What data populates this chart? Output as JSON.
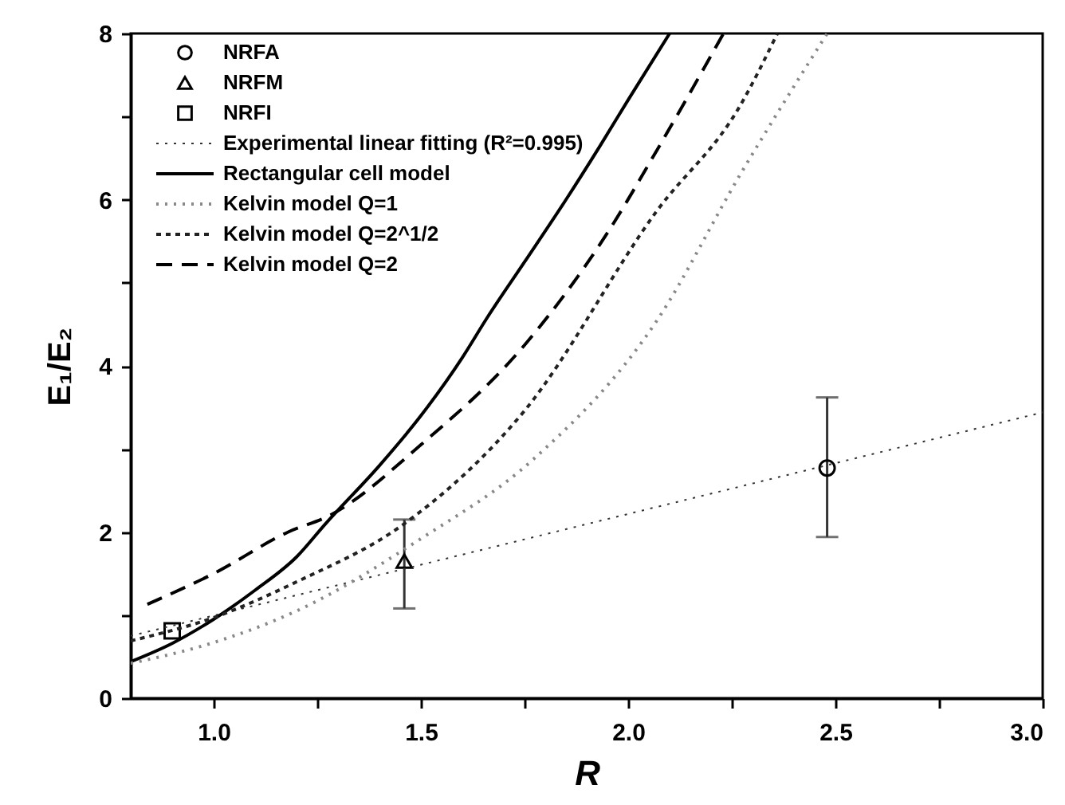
{
  "chart_data": {
    "type": "line",
    "xlabel": "R",
    "ylabel": "E₁/E₂",
    "xlim": [
      0.8,
      3.0
    ],
    "ylim": [
      0,
      8
    ],
    "xticks": [
      {
        "value": 1.0,
        "label": "1.0"
      },
      {
        "value": 1.25,
        "label": null
      },
      {
        "value": 1.5,
        "label": "1.5"
      },
      {
        "value": 1.75,
        "label": null
      },
      {
        "value": 2.0,
        "label": "2.0"
      },
      {
        "value": 2.25,
        "label": null
      },
      {
        "value": 2.5,
        "label": "2.5"
      },
      {
        "value": 2.75,
        "label": null
      },
      {
        "value": 3.0,
        "label": "3.0"
      }
    ],
    "yticks": [
      0,
      {
        "value": 1,
        "label": null
      },
      2,
      {
        "value": 3,
        "label": null
      },
      4,
      {
        "value": 5,
        "label": null
      },
      6,
      {
        "value": 7,
        "label": null
      },
      8
    ],
    "grid": false,
    "legend": "top left",
    "series": [
      {
        "name": "NRFA",
        "type": "scatter",
        "marker": "circle",
        "color": "#000000",
        "x": [
          2.48
        ],
        "values": [
          2.77
        ],
        "errors": [
          [
            1.94,
            3.62
          ]
        ]
      },
      {
        "name": "NRFM",
        "type": "scatter",
        "marker": "triangle",
        "color": "#000000",
        "x": [
          1.46
        ],
        "values": [
          1.65
        ],
        "errors": [
          [
            1.08,
            2.15
          ]
        ]
      },
      {
        "name": "NRFI",
        "type": "scatter",
        "marker": "square",
        "color": "#000000",
        "x": [
          0.9
        ],
        "values": [
          0.81
        ]
      },
      {
        "name": "Experimental linear fitting (R²=0.995)",
        "line_style": "dotted",
        "color": "#333333",
        "x": [
          0.8,
          3.0
        ],
        "values": [
          0.75,
          3.44
        ]
      },
      {
        "name": "Rectangular cell model",
        "line_style": "solid",
        "color": "#000000",
        "x": [
          0.8,
          0.9,
          1.0,
          1.1,
          1.2,
          1.27,
          1.4,
          1.5,
          1.6,
          1.66,
          1.75,
          1.85,
          1.93,
          2.0,
          2.1
        ],
        "values": [
          0.44,
          0.66,
          0.95,
          1.3,
          1.7,
          2.1,
          2.8,
          3.4,
          4.1,
          4.58,
          5.25,
          6.0,
          6.63,
          7.2,
          8.0
        ]
      },
      {
        "name": "Kelvin model Q=1",
        "line_style": "dotted",
        "color": "#888888",
        "x": [
          0.8,
          1.0,
          1.2,
          1.5,
          1.77,
          2.07,
          2.27,
          2.48
        ],
        "values": [
          0.42,
          0.67,
          1.05,
          1.92,
          2.87,
          4.55,
          6.3,
          8.0
        ]
      },
      {
        "name": "Kelvin model Q=2^1/2",
        "line_style": "dashed",
        "color": "#222222",
        "x": [
          0.8,
          1.0,
          1.2,
          1.46,
          1.75,
          2.07,
          2.27,
          2.36
        ],
        "values": [
          0.69,
          0.97,
          1.4,
          2.1,
          3.46,
          5.87,
          7.13,
          8.0
        ]
      },
      {
        "name": "Kelvin model Q=2",
        "line_style": "dashed",
        "color": "#000000",
        "x": [
          0.84,
          1.0,
          1.18,
          1.28,
          1.5,
          1.75,
          1.95,
          2.07,
          2.23
        ],
        "values": [
          1.13,
          1.5,
          2.0,
          2.2,
          3.05,
          4.25,
          5.6,
          6.6,
          8.0
        ]
      }
    ]
  }
}
